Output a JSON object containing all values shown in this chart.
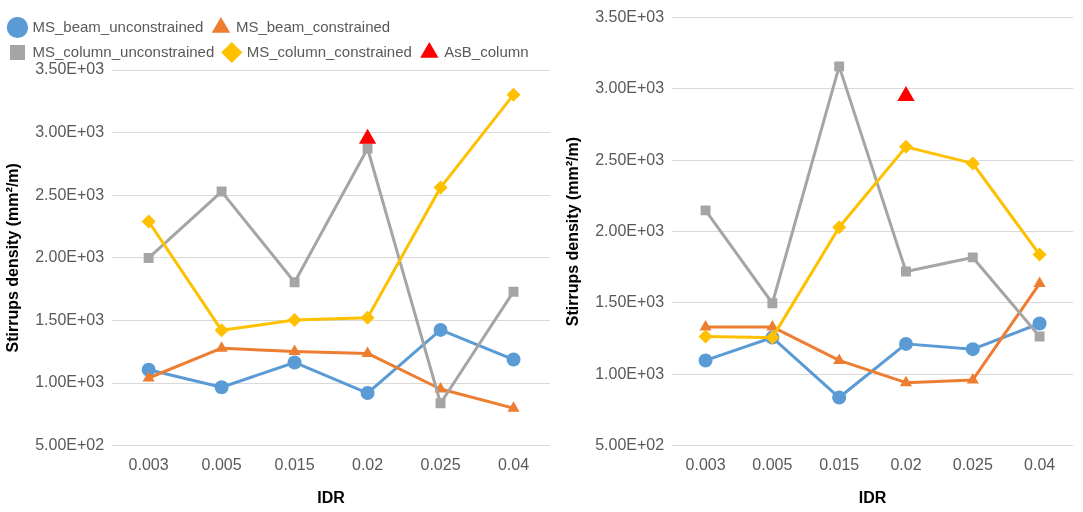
{
  "chart_data": [
    {
      "type": "line",
      "xlabel": "IDR",
      "ylabel": "Stirrups density (mm²/m)",
      "categories": [
        "0.003",
        "0.005",
        "0.015",
        "0.02",
        "0.025",
        "0.04"
      ],
      "ylim": [
        500,
        3500
      ],
      "yticks": [
        {
          "value": 500,
          "label": "5.00E+02"
        },
        {
          "value": 1000,
          "label": "1.00E+03"
        },
        {
          "value": 1500,
          "label": "1.50E+03"
        },
        {
          "value": 2000,
          "label": "2.00E+03"
        },
        {
          "value": 2500,
          "label": "2.50E+03"
        },
        {
          "value": 3000,
          "label": "3.00E+03"
        },
        {
          "value": 3500,
          "label": "3.50E+03"
        }
      ],
      "grid": "y",
      "legend": "top left",
      "series": [
        {
          "name": "MS_beam_unconstrained",
          "color": "#5b9bd5",
          "marker": "circle",
          "values": [
            1106,
            966,
            1164,
            920,
            1424,
            1188
          ]
        },
        {
          "name": "MS_beam_constrained",
          "color": "#ed7d31",
          "marker": "triangle",
          "values": [
            1040,
            1278,
            1252,
            1236,
            952,
            799
          ]
        },
        {
          "name": "MS_column_unconstrained",
          "color": "#a5a5a5",
          "marker": "square",
          "values": [
            1999,
            2529,
            1805,
            2873,
            838,
            1729
          ]
        },
        {
          "name": "MS_column_constrained",
          "color": "#ffc000",
          "marker": "diamond",
          "values": [
            2290,
            1421,
            1503,
            1522,
            2561,
            3303
          ]
        },
        {
          "name": "AsB_column",
          "type": "scatter",
          "color": "#ff0000",
          "marker": "triangle",
          "values": [
            null,
            null,
            null,
            2950,
            null,
            null
          ]
        }
      ]
    },
    {
      "type": "line",
      "xlabel": "IDR",
      "ylabel": "Stirrups density (mm²/m)",
      "categories": [
        "0.003",
        "0.005",
        "0.015",
        "0.02",
        "0.025",
        "0.04"
      ],
      "ylim": [
        500,
        3500
      ],
      "yticks": [
        {
          "value": 500,
          "label": "5.00E+02"
        },
        {
          "value": 1000,
          "label": "1.00E+03"
        },
        {
          "value": 1500,
          "label": "1.50E+03"
        },
        {
          "value": 2000,
          "label": "2.00E+03"
        },
        {
          "value": 2500,
          "label": "2.50E+03"
        },
        {
          "value": 3000,
          "label": "3.00E+03"
        },
        {
          "value": 3500,
          "label": "3.50E+03"
        }
      ],
      "grid": "y",
      "series": [
        {
          "color": "#5b9bd5",
          "marker": "circle",
          "values": [
            1097,
            1257,
            837,
            1213,
            1176,
            1356
          ]
        },
        {
          "color": "#ed7d31",
          "marker": "triangle",
          "values": [
            1332,
            1332,
            1097,
            941,
            960,
            1636
          ]
        },
        {
          "color": "#a5a5a5",
          "marker": "square",
          "values": [
            2149,
            1498,
            3158,
            1720,
            1819,
            1265
          ]
        },
        {
          "color": "#ffc000",
          "marker": "diamond",
          "values": [
            1265,
            1257,
            2030,
            2594,
            2478,
            1839
          ]
        },
        {
          "type": "scatter",
          "color": "#ff0000",
          "marker": "triangle",
          "values": [
            null,
            null,
            null,
            2950,
            null,
            null
          ]
        }
      ]
    }
  ]
}
